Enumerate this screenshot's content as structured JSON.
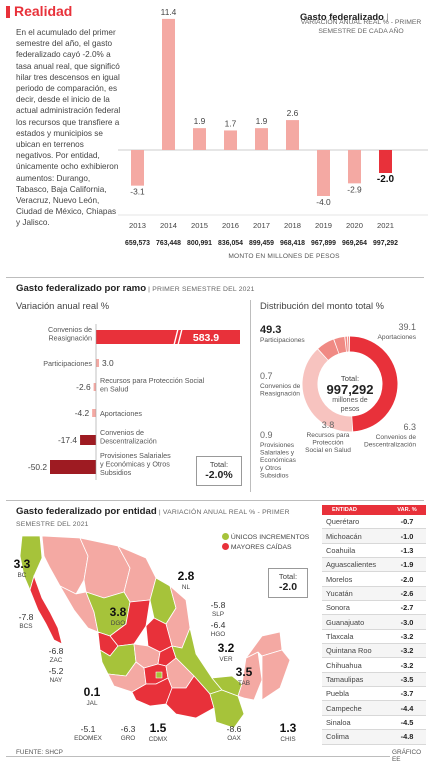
{
  "header": {
    "brand": "Realidad",
    "intro": "En el acumulado del primer semestre del año, el gasto federalizado cayó -2.0% a tasa anual real, que significó hilar tres descensos en igual periodo de comparación, es decir, desde el inicio de la actual administración federal los recursos que transfiere a estados y municipios se ubican en terrenos negativos. Por entidad, únicamente ocho exhibieron aumentos: Durango, Tabasco, Baja California, Veracruz, Nuevo León, Ciudad de México, Chiapas y Jalisco.",
    "chart1_title": "Gasto federalizado",
    "chart1_subtitle": "VARIACIÓN ANUAL REAL % - PRIMER SEMESTRE DE CADA AÑO",
    "chart1_amount_caption": "MONTO EN MILLONES DE PESOS"
  },
  "section2": {
    "title": "Gasto federalizado por ramo",
    "subtitle": "PRIMER SEMESTRE DEL 2021",
    "left_heading": "Variación anual real %",
    "right_heading": "Distribución del monto total %",
    "total_label": "Total:",
    "total_value": "-2.0%",
    "donut_center_label": "Total:",
    "donut_center_value": "997,292",
    "donut_center_unit": "millones de pesos"
  },
  "section3": {
    "title": "Gasto federalizado por entidad",
    "subtitle": "VARIACIÓN ANUAL REAL % - PRIMER SEMESTRE DEL 2021",
    "legend_increase": "ÚNICOS INCREMENTOS",
    "legend_decrease": "MAYORES CAÍDAS",
    "total_label": "Total:",
    "total_value": "-2.0",
    "table_head_entity": "ENTIDAD",
    "table_head_var": "VAR. %"
  },
  "footer": {
    "source": "FUENTE: SHCP",
    "credit": "GRÁFICO EE"
  },
  "colors": {
    "accent": "#e8313a",
    "light_red": "#f4a9a3",
    "dark_red": "#9e1b22",
    "green": "#a6c33a",
    "donut_light": "#f7c3bf"
  },
  "chart_data": [
    {
      "type": "bar",
      "title": "Gasto federalizado",
      "subtitle": "VARIACIÓN ANUAL REAL % - PRIMER SEMESTRE DE CADA AÑO",
      "categories": [
        "2013",
        "2014",
        "2015",
        "2016",
        "2017",
        "2018",
        "2019",
        "2020",
        "2021"
      ],
      "values": [
        -3.1,
        11.4,
        1.9,
        1.7,
        1.9,
        2.6,
        -4.0,
        -2.9,
        -2.0
      ],
      "value_labels": [
        "-3.1",
        "11.4",
        "1.9",
        "1.7",
        "1.9",
        "2.6",
        "-4.0",
        "-2.9",
        "-2.0"
      ],
      "amounts": [
        "659,573",
        "763,448",
        "800,991",
        "836,054",
        "899,459",
        "968,418",
        "967,899",
        "969,264",
        "997,292"
      ],
      "ylim": [
        -4.5,
        12
      ]
    },
    {
      "type": "bar",
      "title": "Variación anual real %",
      "orientation": "horizontal",
      "categories": [
        "Convenios de Reasignación",
        "Participaciones",
        "Recursos para Protección Social en Salud",
        "Aportaciones",
        "Convenios de Descentralización",
        "Provisiones Salariales y Económicas y Otros Subsidios"
      ],
      "values": [
        583.9,
        3.0,
        -2.6,
        -4.2,
        -17.4,
        -50.2
      ],
      "value_labels": [
        "583.9",
        "3.0",
        "-2.6",
        "-4.2",
        "-17.4",
        "-50.2"
      ]
    },
    {
      "type": "pie",
      "title": "Distribución del monto total %",
      "categories": [
        "Participaciones",
        "Aportaciones",
        "Convenios de Descentralización",
        "Recursos para Protección Social en Salud",
        "Provisiones Salariales y Económicas y Otros Subsidios",
        "Convenios de Reasignación"
      ],
      "values": [
        49.3,
        39.1,
        6.3,
        3.8,
        0.9,
        0.7
      ],
      "value_labels": [
        "49.3",
        "39.1",
        "6.3",
        "3.8",
        "0.9",
        "0.7"
      ]
    },
    {
      "type": "table",
      "title": "Gasto federalizado por entidad",
      "columns": [
        "ENTIDAD",
        "VAR. %"
      ],
      "rows": [
        [
          "Querétaro",
          "-0.7"
        ],
        [
          "Michoacán",
          "-1.0"
        ],
        [
          "Coahuila",
          "-1.3"
        ],
        [
          "Aguascalientes",
          "-1.9"
        ],
        [
          "Morelos",
          "-2.0"
        ],
        [
          "Yucatán",
          "-2.6"
        ],
        [
          "Sonora",
          "-2.7"
        ],
        [
          "Guanajuato",
          "-3.0"
        ],
        [
          "Tlaxcala",
          "-3.2"
        ],
        [
          "Quintana Roo",
          "-3.2"
        ],
        [
          "Chihuahua",
          "-3.2"
        ],
        [
          "Tamaulipas",
          "-3.5"
        ],
        [
          "Puebla",
          "-3.7"
        ],
        [
          "Campeche",
          "-4.4"
        ],
        [
          "Sinaloa",
          "-4.5"
        ],
        [
          "Colima",
          "-4.8"
        ]
      ]
    },
    {
      "type": "map",
      "title": "Gasto federalizado por entidad",
      "labels": [
        {
          "value": "3.3",
          "name": "BC"
        },
        {
          "value": "-7.8",
          "name": "BCS"
        },
        {
          "value": "3.8",
          "name": "DGO"
        },
        {
          "value": "2.8",
          "name": "NL"
        },
        {
          "value": "-5.8",
          "name": "SLP"
        },
        {
          "value": "-6.4",
          "name": "HGO"
        },
        {
          "value": "3.2",
          "name": "VER"
        },
        {
          "value": "3.5",
          "name": "TAB"
        },
        {
          "value": "-6.8",
          "name": "ZAC"
        },
        {
          "value": "-5.2",
          "name": "NAY"
        },
        {
          "value": "0.1",
          "name": "JAL"
        },
        {
          "value": "-5.1",
          "name": "EDOMEX"
        },
        {
          "value": "-6.3",
          "name": "GRO"
        },
        {
          "value": "1.5",
          "name": "CDMX"
        },
        {
          "value": "-8.6",
          "name": "OAX"
        },
        {
          "value": "1.3",
          "name": "CHIS"
        }
      ]
    }
  ]
}
